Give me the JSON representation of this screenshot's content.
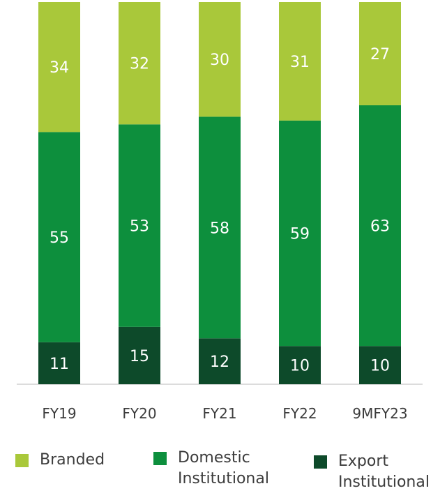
{
  "chart_data": {
    "type": "bar",
    "stacked": true,
    "categories": [
      "FY19",
      "FY20",
      "FY21",
      "FY22",
      "9MFY23"
    ],
    "series": [
      {
        "name": "Export Institutional",
        "color": "#0d4a2a",
        "values": [
          11,
          15,
          12,
          10,
          10
        ]
      },
      {
        "name": "Domestic Institutional",
        "color": "#0d8f3d",
        "values": [
          55,
          53,
          58,
          59,
          63
        ]
      },
      {
        "name": "Branded",
        "color": "#a9c83a",
        "values": [
          34,
          32,
          30,
          31,
          27
        ]
      }
    ],
    "ylim": [
      0,
      100
    ],
    "title": "",
    "xlabel": "",
    "ylabel": "",
    "legend_position": "bottom",
    "data_label_color": "#ffffff",
    "tick_label_color": "#3c3c3c",
    "axis_line_color": "#d0d0d0"
  },
  "legend": [
    {
      "label": "Branded",
      "color": "#a9c83a"
    },
    {
      "label": "Domestic\nInstitutional",
      "color": "#0d8f3d"
    },
    {
      "label": "Export\nInstitutional",
      "color": "#0d4a2a"
    }
  ]
}
